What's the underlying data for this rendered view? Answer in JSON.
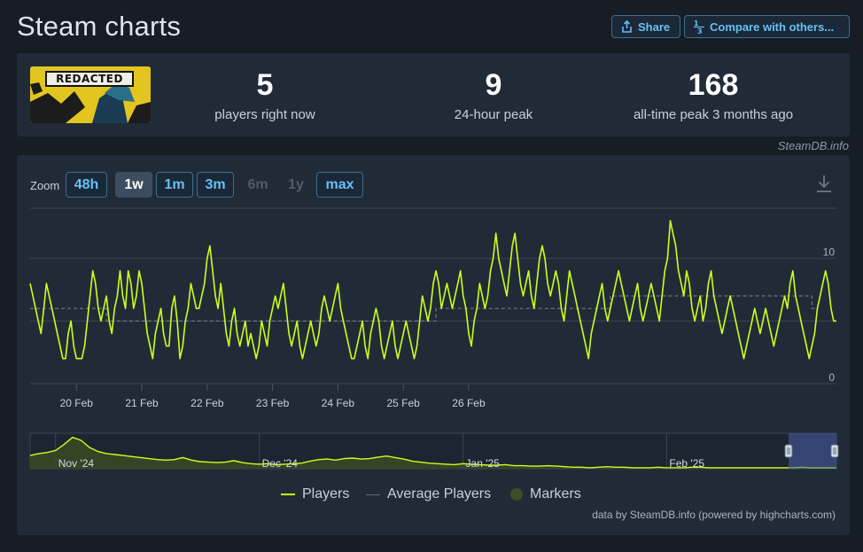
{
  "page": {
    "title": "Steam charts"
  },
  "header": {
    "share_label": "Share",
    "compare_label": "Compare with others..."
  },
  "stats": {
    "game_logo_text": "REDACTED",
    "now": {
      "value": "5",
      "label": "players right now"
    },
    "peak24": {
      "value": "9",
      "label": "24-hour peak"
    },
    "alltime": {
      "value": "168",
      "label": "all-time peak 3 months ago"
    }
  },
  "attribution": "SteamDB.info",
  "zoom": {
    "label": "Zoom",
    "buttons": [
      {
        "id": "48h",
        "label": "48h",
        "state": "enabled"
      },
      {
        "id": "1w",
        "label": "1w",
        "state": "active"
      },
      {
        "id": "1m",
        "label": "1m",
        "state": "enabled"
      },
      {
        "id": "3m",
        "label": "3m",
        "state": "enabled"
      },
      {
        "id": "6m",
        "label": "6m",
        "state": "disabled"
      },
      {
        "id": "1y",
        "label": "1y",
        "state": "disabled"
      },
      {
        "id": "max",
        "label": "max",
        "state": "enabled"
      }
    ]
  },
  "legend": {
    "players": "Players",
    "average": "Average Players",
    "markers": "Markers"
  },
  "credit": "data by SteamDB.info (powered by highcharts.com)",
  "colors": {
    "players": "#cfff1a",
    "average": "#7c8793",
    "markers": "#3d4d28",
    "accent": "#66c0f4",
    "grid": "#3a4554"
  },
  "chart_data": {
    "type": "line",
    "title": "",
    "xlabel": "",
    "ylabel": "",
    "x_ticks": [
      "20 Feb",
      "21 Feb",
      "22 Feb",
      "23 Feb",
      "24 Feb",
      "25 Feb",
      "26 Feb"
    ],
    "y_ticks": [
      0,
      10
    ],
    "ylim": [
      0,
      14
    ],
    "series": [
      {
        "name": "Players",
        "x_start": "19 Feb 07:00",
        "interval": "1h",
        "values": [
          8,
          7,
          6,
          5,
          4,
          6,
          8,
          7,
          6,
          5,
          4,
          3,
          2,
          2,
          4,
          5,
          3,
          2,
          2,
          2,
          3,
          5,
          7,
          9,
          8,
          6,
          5,
          6,
          7,
          5,
          4,
          6,
          7,
          9,
          7,
          6,
          9,
          8,
          6,
          7,
          9,
          8,
          6,
          4,
          3,
          2,
          4,
          5,
          6,
          4,
          3,
          3,
          6,
          7,
          5,
          2,
          3,
          5,
          6,
          8,
          7,
          6,
          6,
          7,
          8,
          10,
          11,
          9,
          7,
          6,
          8,
          6,
          4,
          3,
          5,
          6,
          4,
          3,
          4,
          5,
          3,
          4,
          3,
          2,
          3,
          5,
          4,
          3,
          5,
          6,
          7,
          6,
          7,
          8,
          6,
          4,
          3,
          4,
          5,
          3,
          2,
          3,
          4,
          5,
          4,
          3,
          4,
          6,
          7,
          6,
          5,
          6,
          7,
          8,
          6,
          5,
          4,
          3,
          2,
          2,
          3,
          4,
          5,
          3,
          2,
          4,
          5,
          6,
          5,
          3,
          2,
          3,
          4,
          5,
          3,
          2,
          3,
          4,
          5,
          4,
          3,
          2,
          3,
          5,
          7,
          6,
          5,
          6,
          8,
          9,
          8,
          6,
          7,
          8,
          7,
          6,
          7,
          8,
          9,
          7,
          6,
          4,
          3,
          5,
          6,
          8,
          7,
          6,
          7,
          9,
          10,
          12,
          10,
          9,
          8,
          7,
          9,
          11,
          12,
          10,
          8,
          7,
          8,
          9,
          7,
          6,
          8,
          10,
          11,
          10,
          8,
          7,
          8,
          9,
          8,
          6,
          5,
          7,
          9,
          8,
          7,
          6,
          5,
          4,
          3,
          2,
          4,
          5,
          6,
          7,
          8,
          6,
          5,
          6,
          7,
          8,
          9,
          8,
          7,
          6,
          5,
          6,
          7,
          8,
          6,
          5,
          6,
          7,
          8,
          7,
          6,
          5,
          7,
          9,
          10,
          13,
          12,
          11,
          9,
          8,
          7,
          9,
          8,
          6,
          5,
          6,
          7,
          5,
          6,
          8,
          9,
          7,
          6,
          5,
          4,
          5,
          6,
          7,
          6,
          5,
          4,
          3,
          2,
          3,
          4,
          5,
          6,
          5,
          4,
          5,
          6,
          5,
          4,
          3,
          4,
          5,
          6,
          7,
          6,
          8,
          9,
          7,
          6,
          5,
          4,
          3,
          2,
          3,
          4,
          6,
          7,
          8,
          9,
          8,
          6,
          5,
          5
        ]
      },
      {
        "name": "Average Players",
        "values": [
          6,
          6,
          6,
          6,
          6,
          6,
          6,
          6,
          6,
          6,
          6,
          6,
          6,
          6,
          6,
          6,
          6,
          6,
          6,
          6,
          6,
          6,
          6,
          6,
          6,
          6,
          6,
          6,
          5,
          5,
          5,
          5,
          5,
          5,
          5,
          5,
          5,
          5,
          5,
          5,
          5,
          5,
          5,
          5,
          5,
          5,
          5,
          5,
          5,
          5,
          5,
          5,
          5,
          5,
          5,
          5,
          5,
          5,
          5,
          5,
          5,
          5,
          5,
          5,
          5,
          5,
          5,
          5,
          5,
          5,
          5,
          5,
          5,
          5,
          5,
          5,
          5,
          5,
          5,
          5,
          5,
          5,
          5,
          5,
          5,
          5,
          5,
          5,
          5,
          5,
          5,
          5,
          5,
          5,
          5,
          5,
          5,
          5,
          5,
          5,
          5,
          5,
          5,
          5,
          5,
          5,
          5,
          5,
          5,
          5,
          5,
          5,
          5,
          5,
          5,
          5,
          5,
          5,
          5,
          5,
          5,
          5,
          5,
          5,
          5,
          5,
          5,
          5,
          5,
          5,
          5,
          5,
          5,
          5,
          5,
          5,
          5,
          5,
          5,
          5,
          5,
          5,
          5,
          5,
          5,
          5,
          5,
          5,
          5,
          6,
          6,
          6,
          6,
          6,
          6,
          6,
          6,
          6,
          6,
          6,
          6,
          6,
          6,
          6,
          6,
          6,
          6,
          6,
          6,
          6,
          6,
          6,
          6,
          6,
          6,
          6,
          6,
          6,
          6,
          6,
          6,
          6,
          6,
          6,
          6,
          6,
          6,
          6,
          6,
          6,
          6,
          6,
          6,
          6,
          6,
          6,
          6,
          6,
          6,
          6,
          6,
          6,
          6,
          6,
          6,
          6,
          6,
          6,
          6,
          6,
          6,
          6,
          6,
          7,
          7,
          7,
          7,
          7,
          7,
          7,
          7,
          7,
          7,
          7,
          7,
          7,
          7,
          7,
          7,
          7,
          7,
          7,
          7,
          7,
          7,
          7,
          7,
          7,
          7,
          7,
          7,
          7,
          7,
          7,
          7,
          7,
          7,
          7,
          7,
          7,
          7,
          7,
          7,
          7,
          7,
          7,
          7,
          7,
          7,
          7,
          7,
          7,
          7,
          7,
          7,
          7,
          7,
          7,
          7,
          7,
          7,
          7,
          7,
          7,
          7,
          7,
          7,
          7,
          7,
          7,
          7,
          7,
          7,
          7,
          7,
          7,
          7,
          6,
          6,
          6
        ]
      }
    ],
    "navigator": {
      "x_ticks": [
        "Nov '24",
        "Dec '24",
        "Jan '25",
        "Feb '25"
      ],
      "values": [
        26,
        30,
        32,
        36,
        48,
        62,
        56,
        42,
        34,
        30,
        28,
        26,
        24,
        22,
        20,
        18,
        17,
        18,
        22,
        17,
        14,
        13,
        12,
        13,
        16,
        12,
        10,
        9,
        10,
        8,
        9,
        10,
        11,
        15,
        18,
        19,
        17,
        20,
        21,
        19,
        20,
        23,
        25,
        22,
        19,
        15,
        13,
        11,
        10,
        9,
        8,
        10,
        9,
        8,
        7,
        7,
        8,
        6,
        6,
        5,
        5,
        6,
        5,
        4,
        3,
        3,
        2,
        3,
        4,
        3,
        3,
        2,
        2,
        2,
        3,
        2,
        2,
        2,
        3,
        3,
        2,
        2,
        2,
        2,
        2,
        2,
        2,
        2,
        2,
        2,
        2,
        3,
        2,
        2,
        2,
        2
      ],
      "selected_range": [
        "19 Feb",
        "26 Feb"
      ]
    }
  }
}
